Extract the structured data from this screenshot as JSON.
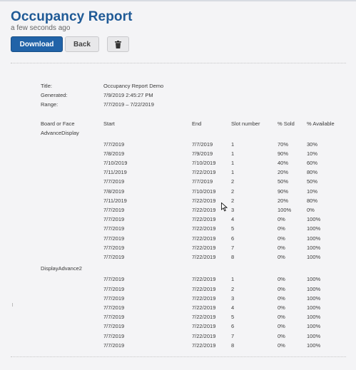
{
  "header": {
    "title": "Occupancy Report",
    "subtitle": "a few seconds ago"
  },
  "toolbar": {
    "download_label": "Download",
    "back_label": "Back",
    "delete_icon": "trash-icon"
  },
  "report": {
    "meta": {
      "title_label": "Title:",
      "title_value": "Occupancy Report Demo",
      "generated_label": "Generated:",
      "generated_value": "7/9/2019 2:45:27 PM",
      "range_label": "Range:",
      "range_value": "7/7/2019 – 7/22/2019"
    },
    "columns": [
      "Board or Face",
      "Start",
      "End",
      "Slot number",
      "% Sold",
      "% Available"
    ],
    "groups": [
      {
        "name": "AdvanceDisplay",
        "rows": [
          [
            "7/7/2019",
            "7/7/2019",
            "1",
            "70%",
            "30%"
          ],
          [
            "7/8/2019",
            "7/9/2019",
            "1",
            "90%",
            "10%"
          ],
          [
            "7/10/2019",
            "7/10/2019",
            "1",
            "40%",
            "60%"
          ],
          [
            "7/11/2019",
            "7/22/2019",
            "1",
            "20%",
            "80%"
          ],
          [
            "7/7/2019",
            "7/7/2019",
            "2",
            "50%",
            "50%"
          ],
          [
            "7/8/2019",
            "7/10/2019",
            "2",
            "90%",
            "10%"
          ],
          [
            "7/11/2019",
            "7/22/2019",
            "2",
            "20%",
            "80%"
          ],
          [
            "7/7/2019",
            "7/22/2019",
            "3",
            "100%",
            "0%"
          ],
          [
            "7/7/2019",
            "7/22/2019",
            "4",
            "0%",
            "100%"
          ],
          [
            "7/7/2019",
            "7/22/2019",
            "5",
            "0%",
            "100%"
          ],
          [
            "7/7/2019",
            "7/22/2019",
            "6",
            "0%",
            "100%"
          ],
          [
            "7/7/2019",
            "7/22/2019",
            "7",
            "0%",
            "100%"
          ],
          [
            "7/7/2019",
            "7/22/2019",
            "8",
            "0%",
            "100%"
          ]
        ]
      },
      {
        "name": "DisplayAdvance2",
        "rows": [
          [
            "7/7/2019",
            "7/22/2019",
            "1",
            "0%",
            "100%"
          ],
          [
            "7/7/2019",
            "7/22/2019",
            "2",
            "0%",
            "100%"
          ],
          [
            "7/7/2019",
            "7/22/2019",
            "3",
            "0%",
            "100%"
          ],
          [
            "7/7/2019",
            "7/22/2019",
            "4",
            "0%",
            "100%"
          ],
          [
            "7/7/2019",
            "7/22/2019",
            "5",
            "0%",
            "100%"
          ],
          [
            "7/7/2019",
            "7/22/2019",
            "6",
            "0%",
            "100%"
          ],
          [
            "7/7/2019",
            "7/22/2019",
            "7",
            "0%",
            "100%"
          ],
          [
            "7/7/2019",
            "7/22/2019",
            "8",
            "0%",
            "100%"
          ]
        ]
      }
    ]
  }
}
